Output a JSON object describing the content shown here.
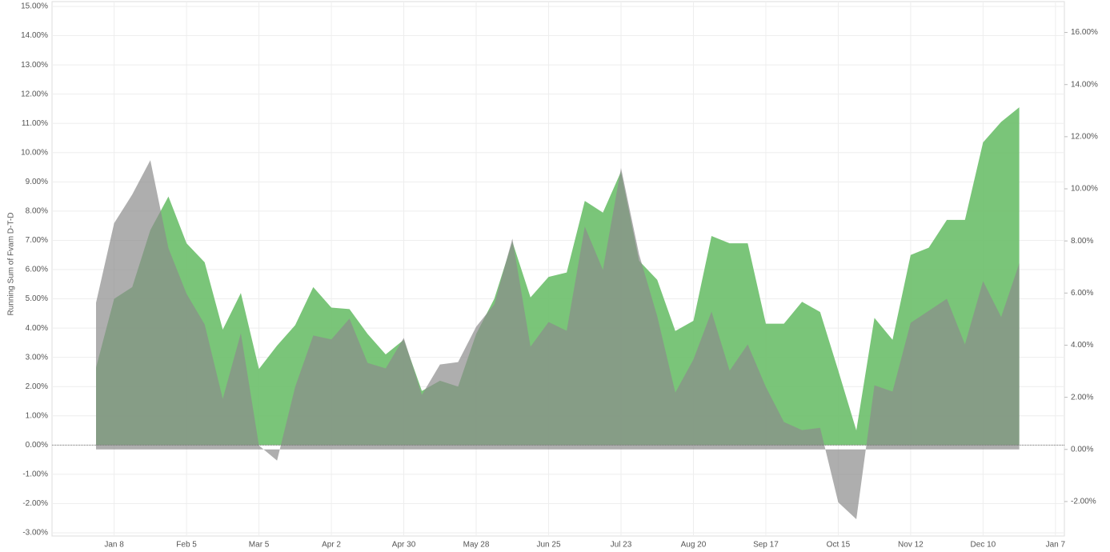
{
  "chart_data": {
    "type": "area",
    "y_label": "Running Sum of Fvam D-T-D",
    "categories": [
      null,
      "Jan 8",
      null,
      null,
      null,
      "Feb 5",
      null,
      null,
      null,
      "Mar 5",
      null,
      null,
      null,
      "Apr 2",
      null,
      null,
      null,
      "Apr 30",
      null,
      null,
      null,
      "May 28",
      null,
      null,
      null,
      "Jun 25",
      null,
      null,
      null,
      "Jul 23",
      null,
      null,
      null,
      "Aug 20",
      null,
      null,
      null,
      "Sep 17",
      null,
      null,
      null,
      "Oct 15",
      null,
      null,
      null,
      "Nov 12",
      null,
      null,
      null,
      "Dec 10",
      null,
      null,
      null,
      "Jan 7"
    ],
    "series": [
      {
        "color": "#6cbf6a",
        "axis": "y",
        "values": [
          2.65,
          5.0,
          5.4,
          7.35,
          8.5,
          6.9,
          6.25,
          3.95,
          5.2,
          2.6,
          3.4,
          4.1,
          5.4,
          4.7,
          4.65,
          3.8,
          3.1,
          3.6,
          1.85,
          2.2,
          2.0,
          3.8,
          5.0,
          6.95,
          5.05,
          5.75,
          5.9,
          8.35,
          7.95,
          9.35,
          6.3,
          5.65,
          3.9,
          4.25,
          7.15,
          6.9,
          6.9,
          4.15,
          4.15,
          4.9,
          4.55,
          2.55,
          0.5,
          4.35,
          3.6,
          6.5,
          6.75,
          7.7,
          7.7,
          10.35,
          11.05,
          11.55,
          null,
          null
        ]
      },
      {
        "color": "#8c8c8c",
        "axis": "y2",
        "values": [
          5.63,
          8.68,
          9.78,
          11.1,
          7.72,
          5.97,
          4.8,
          1.94,
          4.46,
          0.15,
          -0.43,
          2.4,
          4.37,
          4.22,
          5.02,
          3.32,
          3.11,
          4.28,
          2.09,
          3.26,
          3.35,
          4.71,
          5.57,
          8.09,
          3.94,
          4.89,
          4.55,
          8.55,
          6.89,
          10.8,
          7.48,
          5.11,
          2.18,
          3.45,
          5.29,
          3.02,
          4.03,
          2.4,
          1.05,
          0.74,
          0.83,
          -2.03,
          -2.68,
          2.46,
          2.22,
          4.86,
          5.32,
          5.78,
          4.03,
          6.46,
          5.08,
          7.14,
          null,
          null
        ]
      }
    ],
    "ylim": [
      -3,
      15
    ],
    "yticks": [
      {
        "value": -3,
        "label": "-3.00%"
      },
      {
        "value": -2,
        "label": "-2.00%"
      },
      {
        "value": -1,
        "label": "-1.00%"
      },
      {
        "value": 0,
        "label": "0.00%"
      },
      {
        "value": 1,
        "label": "1.00%"
      },
      {
        "value": 2,
        "label": "2.00%"
      },
      {
        "value": 3,
        "label": "3.00%"
      },
      {
        "value": 4,
        "label": "4.00%"
      },
      {
        "value": 5,
        "label": "5.00%"
      },
      {
        "value": 6,
        "label": "6.00%"
      },
      {
        "value": 7,
        "label": "7.00%"
      },
      {
        "value": 8,
        "label": "8.00%"
      },
      {
        "value": 9,
        "label": "9.00%"
      },
      {
        "value": 10,
        "label": "10.00%"
      },
      {
        "value": 11,
        "label": "11.00%"
      },
      {
        "value": 12,
        "label": "12.00%"
      },
      {
        "value": 13,
        "label": "13.00%"
      },
      {
        "value": 14,
        "label": "14.00%"
      },
      {
        "value": 15,
        "label": "15.00%"
      }
    ],
    "y2lim": [
      -3.2,
      17
    ],
    "y2ticks": [
      {
        "value": -2,
        "label": "-2.00%"
      },
      {
        "value": 0,
        "label": "0.00%"
      },
      {
        "value": 2,
        "label": "2.00%"
      },
      {
        "value": 4,
        "label": "4.00%"
      },
      {
        "value": 6,
        "label": "6.00%"
      },
      {
        "value": 8,
        "label": "8.00%"
      },
      {
        "value": 10,
        "label": "10.00%"
      },
      {
        "value": 12,
        "label": "12.00%"
      },
      {
        "value": 14,
        "label": "14.00%"
      },
      {
        "value": 16,
        "label": "16.00%"
      }
    ],
    "grid": true
  }
}
